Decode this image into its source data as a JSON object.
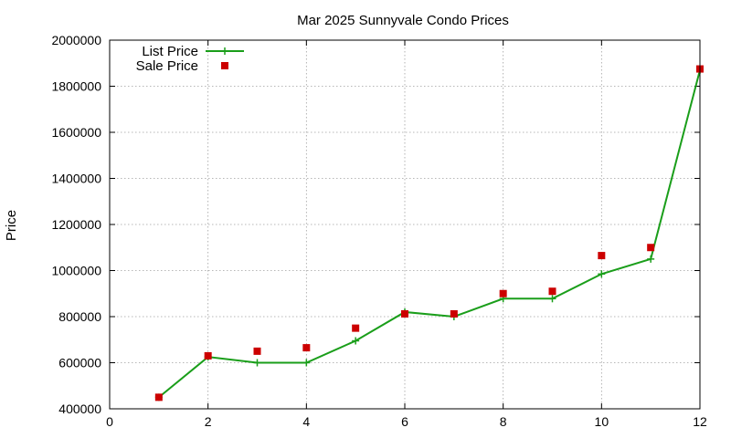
{
  "chart_data": {
    "type": "line",
    "title": "Mar 2025 Sunnyvale Condo Prices",
    "xlabel": "",
    "ylabel": "Price",
    "xlim": [
      0,
      12
    ],
    "ylim": [
      400000,
      2000000
    ],
    "xticks": [
      0,
      2,
      4,
      6,
      8,
      10,
      12
    ],
    "yticks": [
      400000,
      600000,
      800000,
      1000000,
      1200000,
      1400000,
      1600000,
      1800000,
      2000000
    ],
    "grid": true,
    "legend_position": "top-left",
    "series": [
      {
        "name": "List Price",
        "style": "line-points",
        "marker": "plus",
        "color": "#1a9e1a",
        "x": [
          1,
          2,
          3,
          4,
          5,
          6,
          7,
          8,
          9,
          10,
          11,
          12
        ],
        "values": [
          450000,
          625000,
          600000,
          600000,
          695000,
          820000,
          800000,
          878000,
          878000,
          985000,
          1050000,
          1870000
        ]
      },
      {
        "name": "Sale Price",
        "style": "points",
        "marker": "square",
        "color": "#cc0000",
        "x": [
          1,
          2,
          3,
          4,
          5,
          6,
          7,
          8,
          9,
          10,
          11,
          12
        ],
        "values": [
          450000,
          630000,
          650000,
          665000,
          750000,
          812000,
          812000,
          900000,
          910000,
          1065000,
          1100000,
          1875000
        ]
      }
    ]
  }
}
